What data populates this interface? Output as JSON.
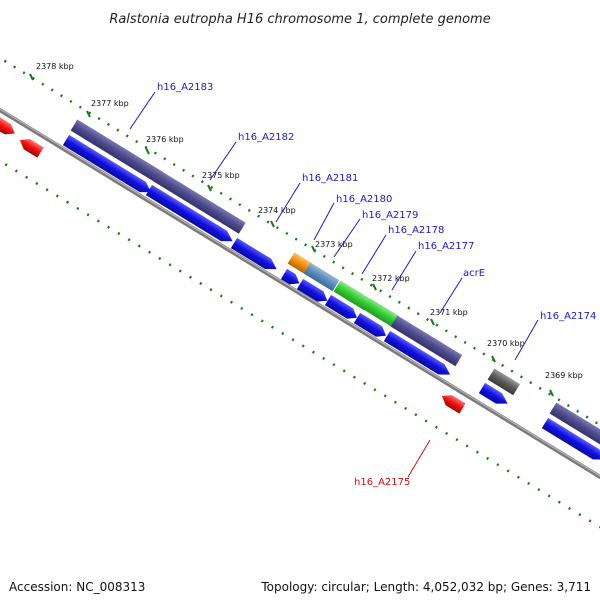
{
  "title": "Ralstonia eutropha H16 chromosome 1, complete genome",
  "footer": {
    "accession": "Accession: NC_008313",
    "summary": "Topology: circular; Length: 4,052,032 bp; Genes: 3,711"
  },
  "kbp_labels": [
    "2378 kbp",
    "2377 kbp",
    "2376 kbp",
    "2375 kbp",
    "2374 kbp",
    "2373 kbp",
    "2372 kbp",
    "2371 kbp",
    "2370 kbp",
    "2369 kbp"
  ],
  "gene_labels": [
    "h16_A2183",
    "h16_A2182",
    "h16_A2181",
    "h16_A2180",
    "h16_A2179",
    "h16_A2178",
    "h16_A2177",
    "acrE",
    "h16_A2174",
    "h16_A2175"
  ],
  "colors": {
    "backbone": "#808080",
    "cds": "#1010e0",
    "cog_purple": "#4c4a8c",
    "cog_orange": "#f08c10",
    "cog_steelblue": "#5a8cbe",
    "cog_green": "#33cc33",
    "cog_gray": "#5a5a5a",
    "reverse_red": "#ee1111",
    "tick": "#1a7a1a",
    "label_blue": "#1a1acc",
    "label_red": "#cc1111"
  }
}
